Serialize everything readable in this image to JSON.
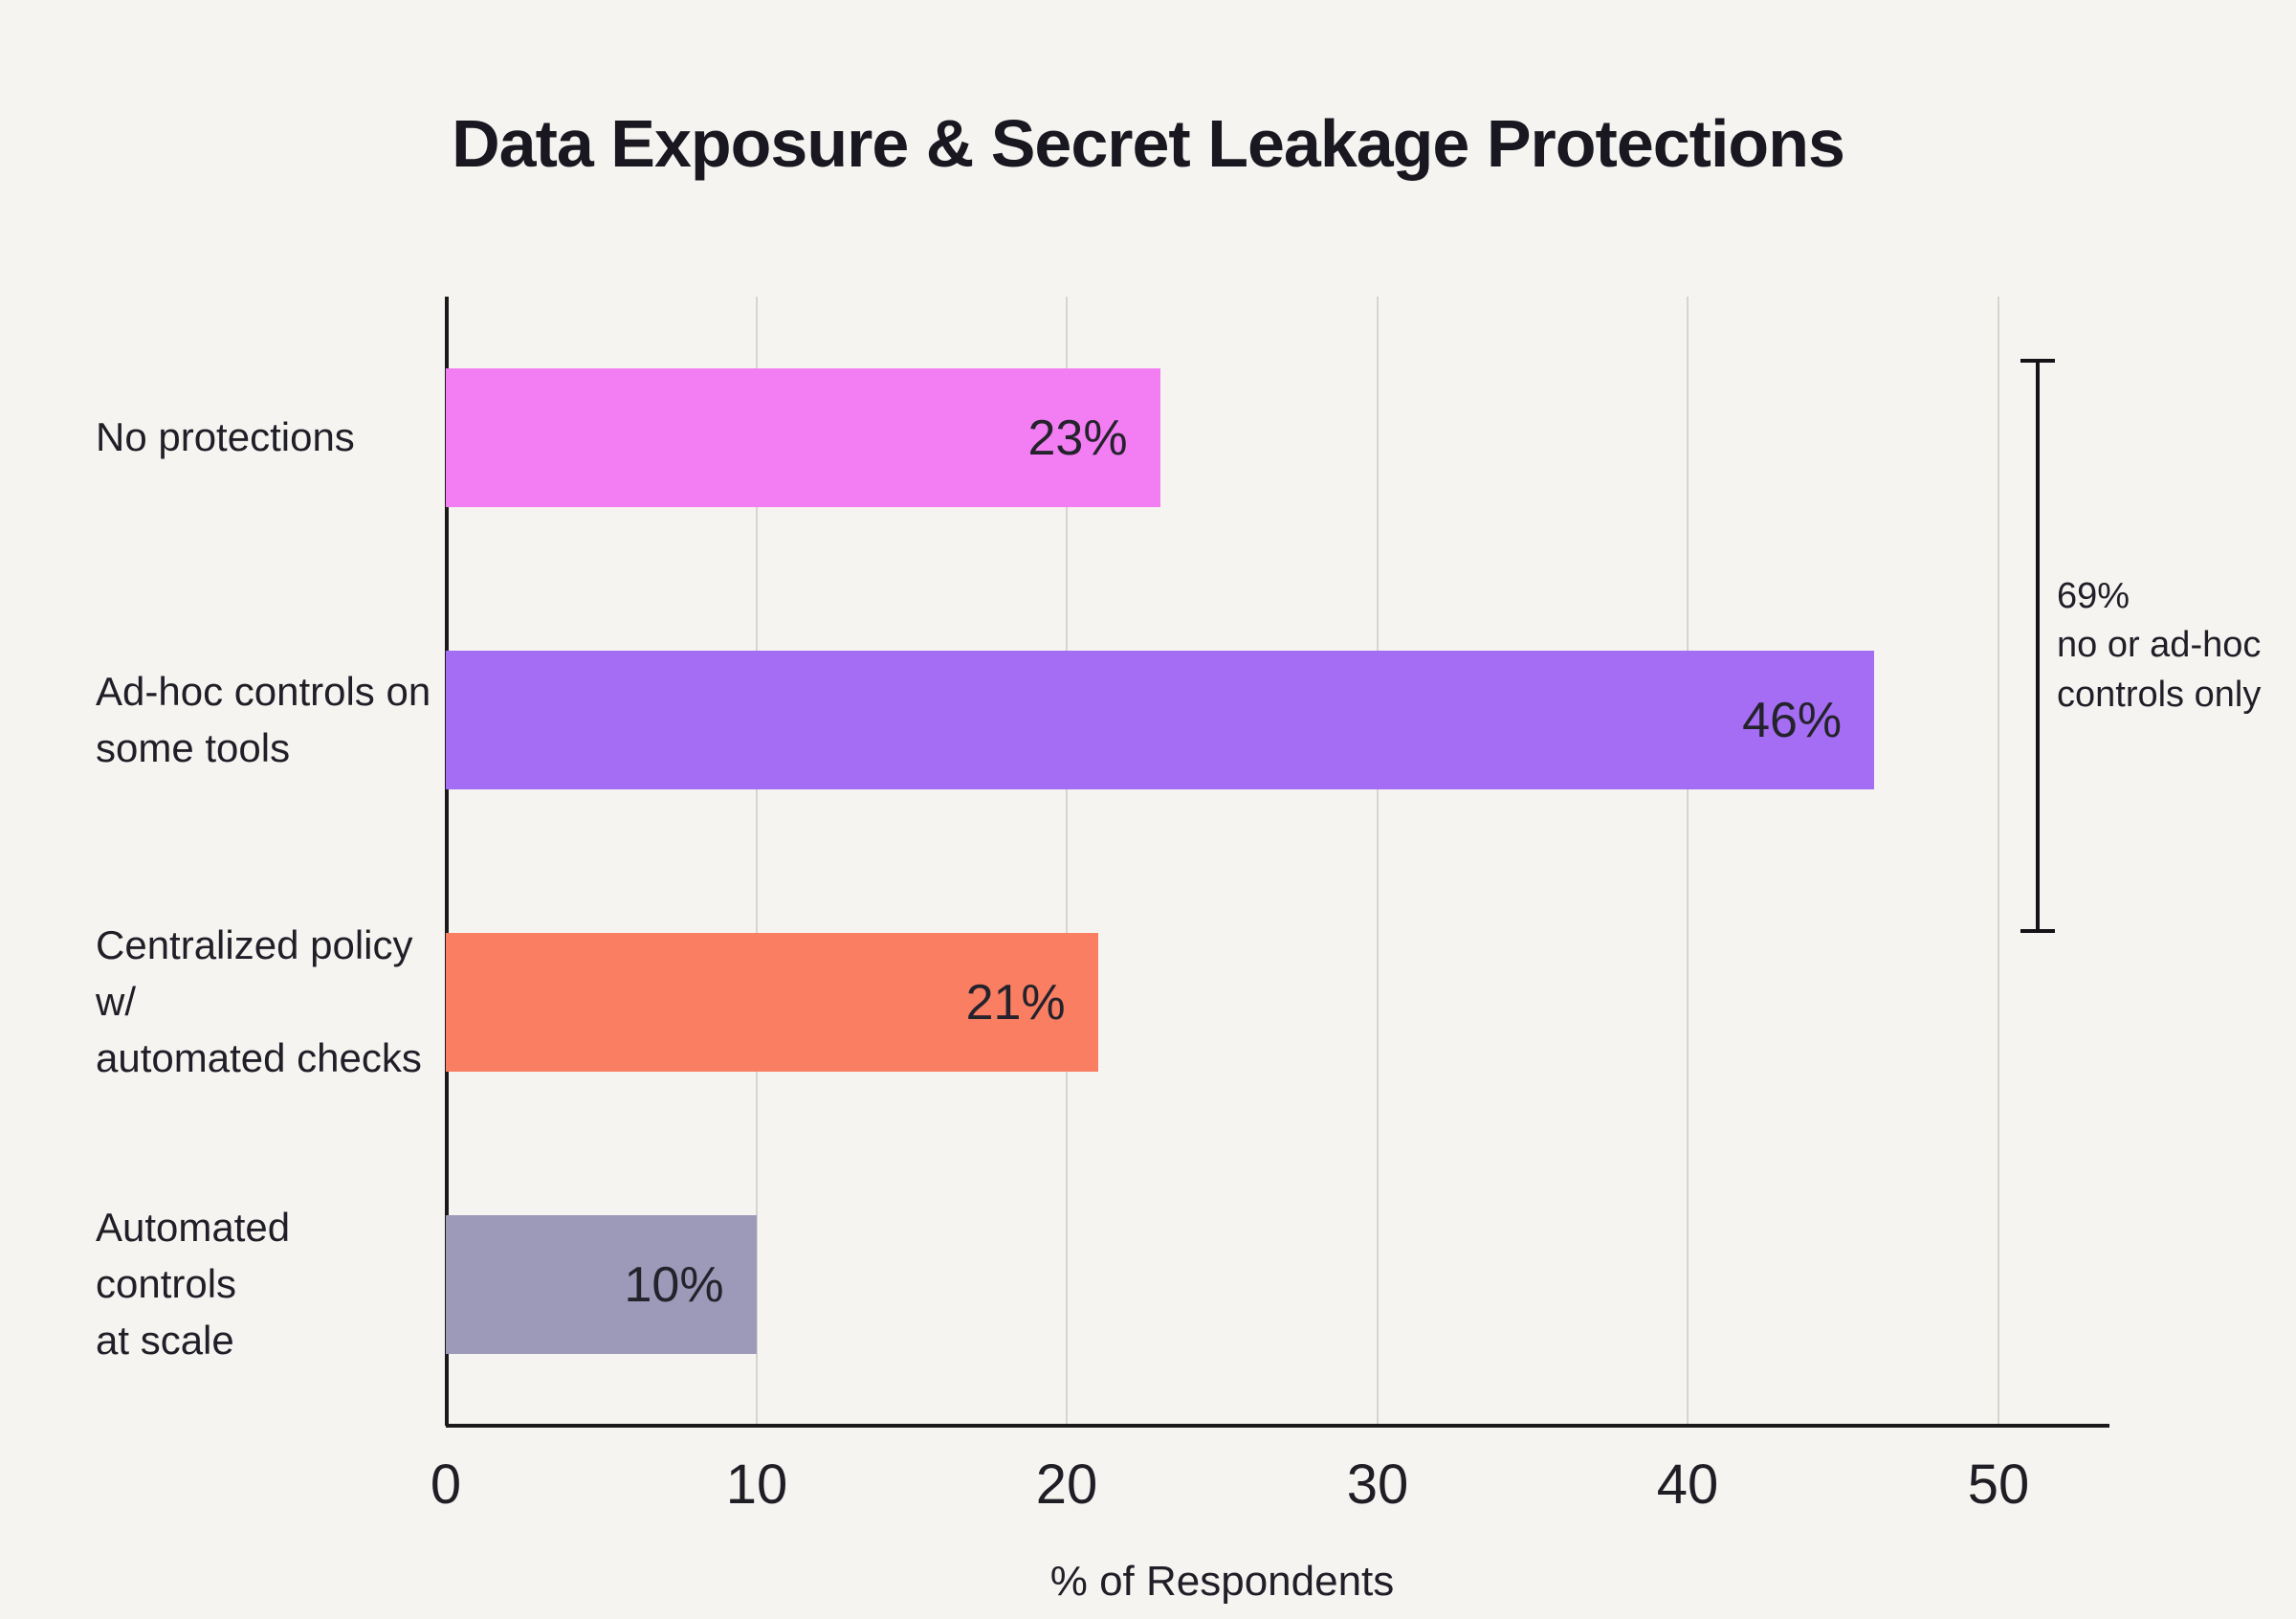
{
  "title": "Data Exposure & Secret Leakage Protections",
  "chart_data": {
    "type": "bar",
    "orientation": "horizontal",
    "title": "Data Exposure & Secret Leakage Protections",
    "categories": [
      "No protections",
      "Ad-hoc controls on\nsome tools",
      "Centralized policy w/\nautomated checks",
      "Automated controls\nat scale"
    ],
    "values": [
      23,
      46,
      21,
      10
    ],
    "value_labels": [
      "23%",
      "46%",
      "21%",
      "10%"
    ],
    "colors": [
      "#f37df3",
      "#a56df4",
      "#f97e62",
      "#9d99b9"
    ],
    "xlabel": "% of Respondents",
    "xlim": [
      0,
      50
    ],
    "xticks": [
      0,
      10,
      20,
      30,
      40,
      50
    ],
    "grid": "vertical",
    "legend": "none",
    "annotation": {
      "text": "69%\nno or ad-hoc\ncontrols only",
      "spans": "first two bars (no protections + ad-hoc controls)"
    }
  }
}
